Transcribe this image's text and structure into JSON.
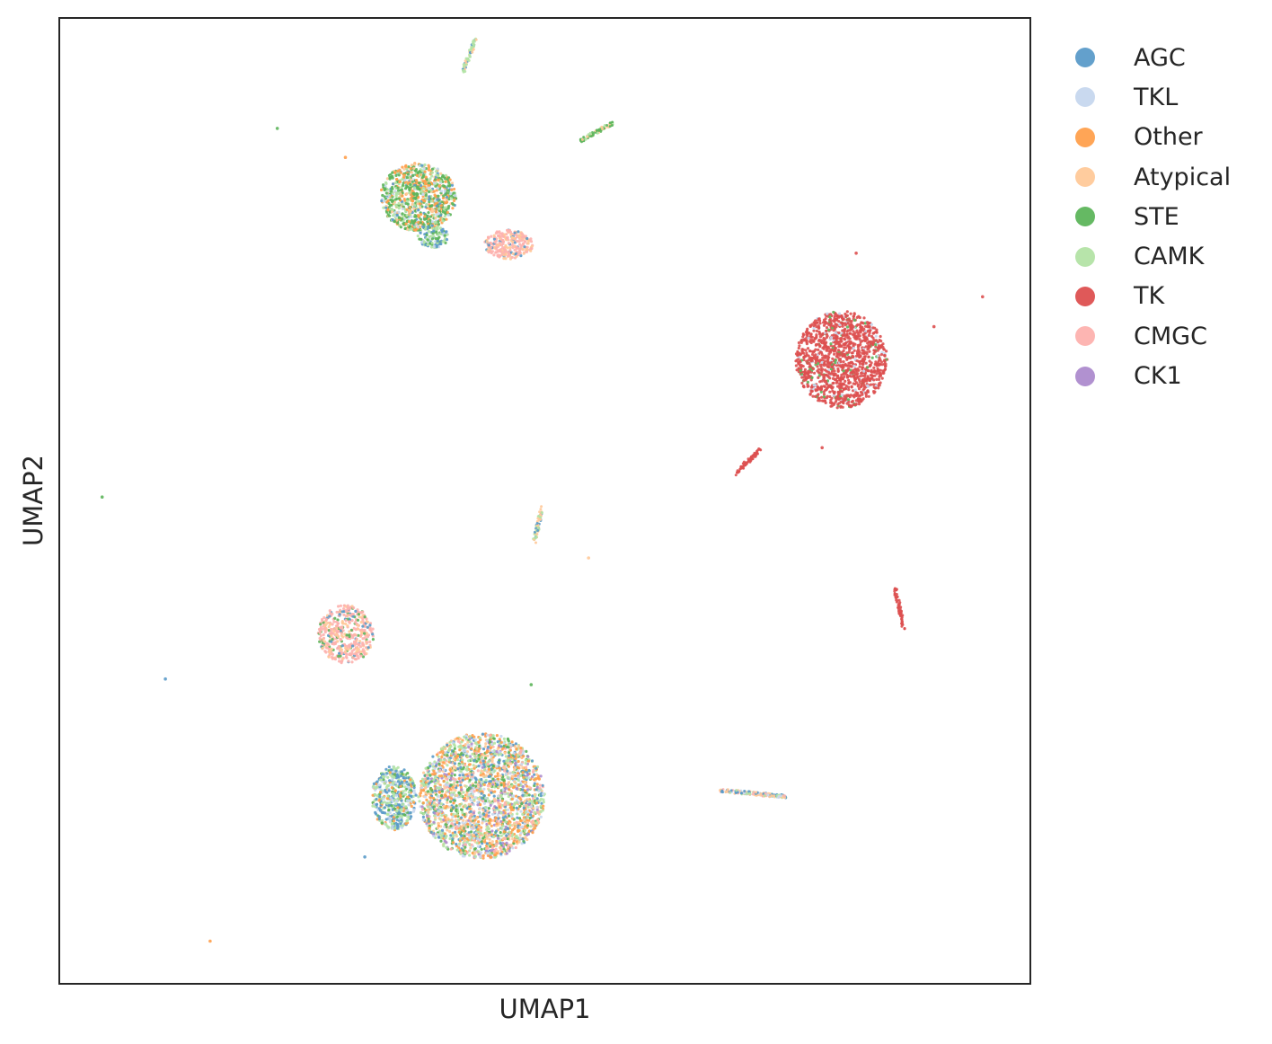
{
  "chart_data": {
    "type": "scatter",
    "title": "",
    "xlabel": "UMAP1",
    "ylabel": "UMAP2",
    "xlim": [
      0,
      100
    ],
    "ylim": [
      0,
      100
    ],
    "ticks": "none",
    "grid": false,
    "legend_position": "outside-right",
    "series": [
      {
        "name": "AGC",
        "color": "#5b9bc9"
      },
      {
        "name": "TKL",
        "color": "#c6d7ee"
      },
      {
        "name": "Other",
        "color": "#ffa04d"
      },
      {
        "name": "Atypical",
        "color": "#ffc999"
      },
      {
        "name": "STE",
        "color": "#5db55b"
      },
      {
        "name": "CAMK",
        "color": "#b3e3a5"
      },
      {
        "name": "TK",
        "color": "#dd5050"
      },
      {
        "name": "CMGC",
        "color": "#fdb1ae"
      },
      {
        "name": "CK1",
        "color": "#ad8bcd"
      }
    ],
    "clusters": [
      {
        "cx": 37,
        "cy": 81.4,
        "rx": 3.9,
        "ry": 3.5,
        "n": 900,
        "mix": {
          "STE": 5,
          "Other": 3,
          "CAMK": 2,
          "AGC": 1,
          "TKL": 1,
          "Atypical": 1
        }
      },
      {
        "cx": 38.5,
        "cy": 77.3,
        "rx": 1.6,
        "ry": 1.2,
        "n": 120,
        "mix": {
          "AGC": 3,
          "CAMK": 3,
          "STE": 2,
          "TKL": 1
        }
      },
      {
        "cx": 46.3,
        "cy": 76.5,
        "rx": 2.5,
        "ry": 1.5,
        "n": 260,
        "mix": {
          "CMGC": 6,
          "Atypical": 2,
          "AGC": 1
        }
      },
      {
        "cx": 80.5,
        "cy": 64.6,
        "rx": 4.7,
        "ry": 5.0,
        "n": 1300,
        "mix": {
          "TK": 14,
          "TKL": 1,
          "STE": 1
        }
      },
      {
        "cx": 29.5,
        "cy": 36.2,
        "rx": 2.9,
        "ry": 3.0,
        "n": 450,
        "mix": {
          "CMGC": 7,
          "Atypical": 2,
          "AGC": 1,
          "STE": 1
        }
      },
      {
        "cx": 34.5,
        "cy": 19.3,
        "rx": 2.3,
        "ry": 3.3,
        "n": 500,
        "mix": {
          "AGC": 3,
          "CAMK": 3,
          "TKL": 2,
          "STE": 1,
          "Other": 1
        }
      },
      {
        "cx": 43.5,
        "cy": 19.5,
        "rx": 6.5,
        "ry": 6.5,
        "n": 2300,
        "mix": {
          "Other": 3,
          "CAMK": 3,
          "TKL": 2,
          "Atypical": 2,
          "STE": 2,
          "AGC": 2,
          "CK1": 1,
          "CMGC": 1
        }
      }
    ],
    "streaks": [
      {
        "x1": 41.6,
        "y1": 94.4,
        "x2": 42.9,
        "y2": 97.7,
        "n": 60,
        "mix": {
          "CAMK": 2,
          "AGC": 1,
          "Atypical": 1
        }
      },
      {
        "x1": 53.7,
        "y1": 87.2,
        "x2": 57.2,
        "y2": 89.2,
        "n": 70,
        "mix": {
          "STE": 2,
          "CAMK": 1,
          "Atypical": 1
        }
      },
      {
        "x1": 69.6,
        "y1": 52.8,
        "x2": 72.1,
        "y2": 55.3,
        "n": 70,
        "mix": {
          "TK": 1
        }
      },
      {
        "x1": 48.9,
        "y1": 45.7,
        "x2": 49.7,
        "y2": 49.3,
        "n": 60,
        "mix": {
          "CAMK": 2,
          "Atypical": 2,
          "AGC": 1
        }
      },
      {
        "x1": 86.0,
        "y1": 41.0,
        "x2": 86.9,
        "y2": 36.7,
        "n": 70,
        "mix": {
          "TK": 1
        }
      },
      {
        "x1": 68.0,
        "y1": 20.1,
        "x2": 75.0,
        "y2": 19.4,
        "n": 160,
        "mix": {
          "AGC": 2,
          "Atypical": 2,
          "TKL": 1,
          "CAMK": 1,
          "CMGC": 1
        }
      }
    ],
    "outliers": [
      {
        "x": 22.5,
        "y": 88.5,
        "category": "STE"
      },
      {
        "x": 29.5,
        "y": 85.5,
        "category": "Other"
      },
      {
        "x": 82.0,
        "y": 75.6,
        "category": "TK"
      },
      {
        "x": 95.0,
        "y": 71.1,
        "category": "TK"
      },
      {
        "x": 90.0,
        "y": 68.0,
        "category": "TK"
      },
      {
        "x": 78.5,
        "y": 55.5,
        "category": "TK"
      },
      {
        "x": 4.5,
        "y": 50.4,
        "category": "STE"
      },
      {
        "x": 54.5,
        "y": 44.1,
        "category": "Atypical"
      },
      {
        "x": 48.6,
        "y": 31.0,
        "category": "STE"
      },
      {
        "x": 11.0,
        "y": 31.6,
        "category": "AGC"
      },
      {
        "x": 31.5,
        "y": 13.2,
        "category": "AGC"
      },
      {
        "x": 15.6,
        "y": 4.5,
        "category": "Other"
      }
    ]
  }
}
